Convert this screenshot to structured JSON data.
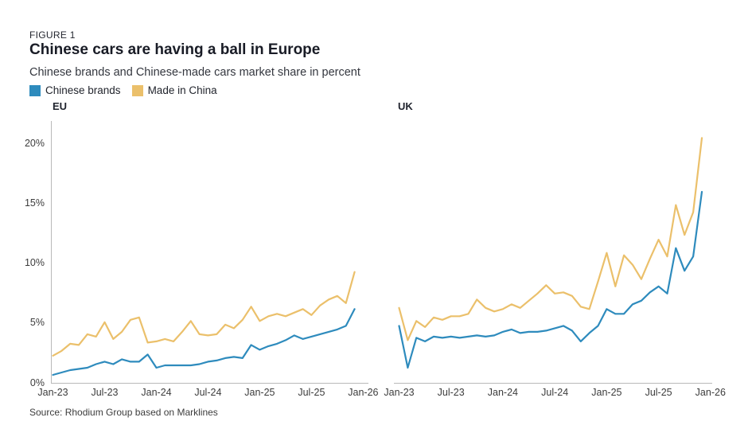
{
  "header": {
    "figure_label": "FIGURE 1",
    "title": "Chinese cars are having a ball in Europe",
    "subtitle": "Chinese brands and Chinese-made cars market share in percent"
  },
  "legend": [
    {
      "label": "Chinese brands",
      "color": "#2E8BBD"
    },
    {
      "label": "Made in China",
      "color": "#EBC06B"
    }
  ],
  "source": "Source: Rhodium Group based on Marklines",
  "colors": {
    "background": "#FFFFFF",
    "axis_line": "#B9B9B9",
    "axis_text": "#3C3C3C",
    "brands_blue": "#2E8BBD",
    "made_in_china_gold": "#EBC06B"
  },
  "chart_data": [
    {
      "type": "line",
      "title": "EU",
      "x_description": "monthly, Jan-2023 through Dec-2025",
      "x_ticks": [
        "Jan-23",
        "Jul-23",
        "Jan-24",
        "Jul-24",
        "Jan-25",
        "Jul-25",
        "Jan-26"
      ],
      "y_ticks": [
        "0%",
        "5%",
        "10%",
        "15%",
        "20%"
      ],
      "ylim": [
        0,
        22
      ],
      "grid": false,
      "legend_position": "top-left above both panels",
      "series": [
        {
          "name": "Chinese brands",
          "color": "#2E8BBD",
          "values": [
            0.7,
            0.9,
            1.1,
            1.2,
            1.3,
            1.6,
            1.8,
            1.6,
            2.0,
            1.8,
            1.8,
            2.4,
            1.3,
            1.5,
            1.5,
            1.5,
            1.5,
            1.6,
            1.8,
            1.9,
            2.1,
            2.2,
            2.1,
            3.2,
            2.8,
            3.1,
            3.3,
            3.6,
            4.0,
            3.7,
            3.9,
            4.1,
            4.3,
            4.5,
            4.8,
            6.2
          ]
        },
        {
          "name": "Made in China",
          "color": "#EBC06B",
          "values": [
            2.3,
            2.7,
            3.3,
            3.2,
            4.1,
            3.9,
            5.1,
            3.7,
            4.3,
            5.3,
            5.5,
            3.4,
            3.5,
            3.7,
            3.5,
            4.3,
            5.2,
            4.1,
            4.0,
            4.1,
            4.9,
            4.6,
            5.3,
            6.4,
            5.2,
            5.6,
            5.8,
            5.6,
            5.9,
            6.2,
            5.7,
            6.5,
            7.0,
            7.3,
            6.7,
            9.3
          ]
        }
      ]
    },
    {
      "type": "line",
      "title": "UK",
      "x_description": "monthly, Jan-2023 through Dec-2025",
      "x_ticks": [
        "Jan-23",
        "Jul-23",
        "Jan-24",
        "Jul-24",
        "Jan-25",
        "Jul-25",
        "Jan-26"
      ],
      "y_ticks": [
        "0%",
        "5%",
        "10%",
        "15%",
        "20%"
      ],
      "ylim": [
        0,
        22
      ],
      "grid": false,
      "series": [
        {
          "name": "Chinese brands",
          "color": "#2E8BBD",
          "values": [
            4.8,
            1.3,
            3.8,
            3.5,
            3.9,
            3.8,
            3.9,
            3.8,
            3.9,
            4.0,
            3.9,
            4.0,
            4.3,
            4.5,
            4.2,
            4.3,
            4.3,
            4.4,
            4.6,
            4.8,
            4.4,
            3.5,
            4.2,
            4.8,
            6.2,
            5.8,
            5.8,
            6.6,
            6.9,
            7.6,
            8.1,
            7.5,
            11.3,
            9.4,
            10.6,
            16.0
          ]
        },
        {
          "name": "Made in China",
          "color": "#EBC06B",
          "values": [
            6.3,
            3.6,
            5.2,
            4.7,
            5.5,
            5.3,
            5.6,
            5.6,
            5.8,
            7.0,
            6.3,
            6.0,
            6.2,
            6.6,
            6.3,
            6.9,
            7.5,
            8.2,
            7.5,
            7.6,
            7.3,
            6.4,
            6.2,
            8.5,
            10.9,
            8.1,
            10.7,
            9.9,
            8.7,
            10.4,
            12.0,
            10.6,
            14.9,
            12.4,
            14.3,
            20.5
          ]
        }
      ]
    }
  ]
}
